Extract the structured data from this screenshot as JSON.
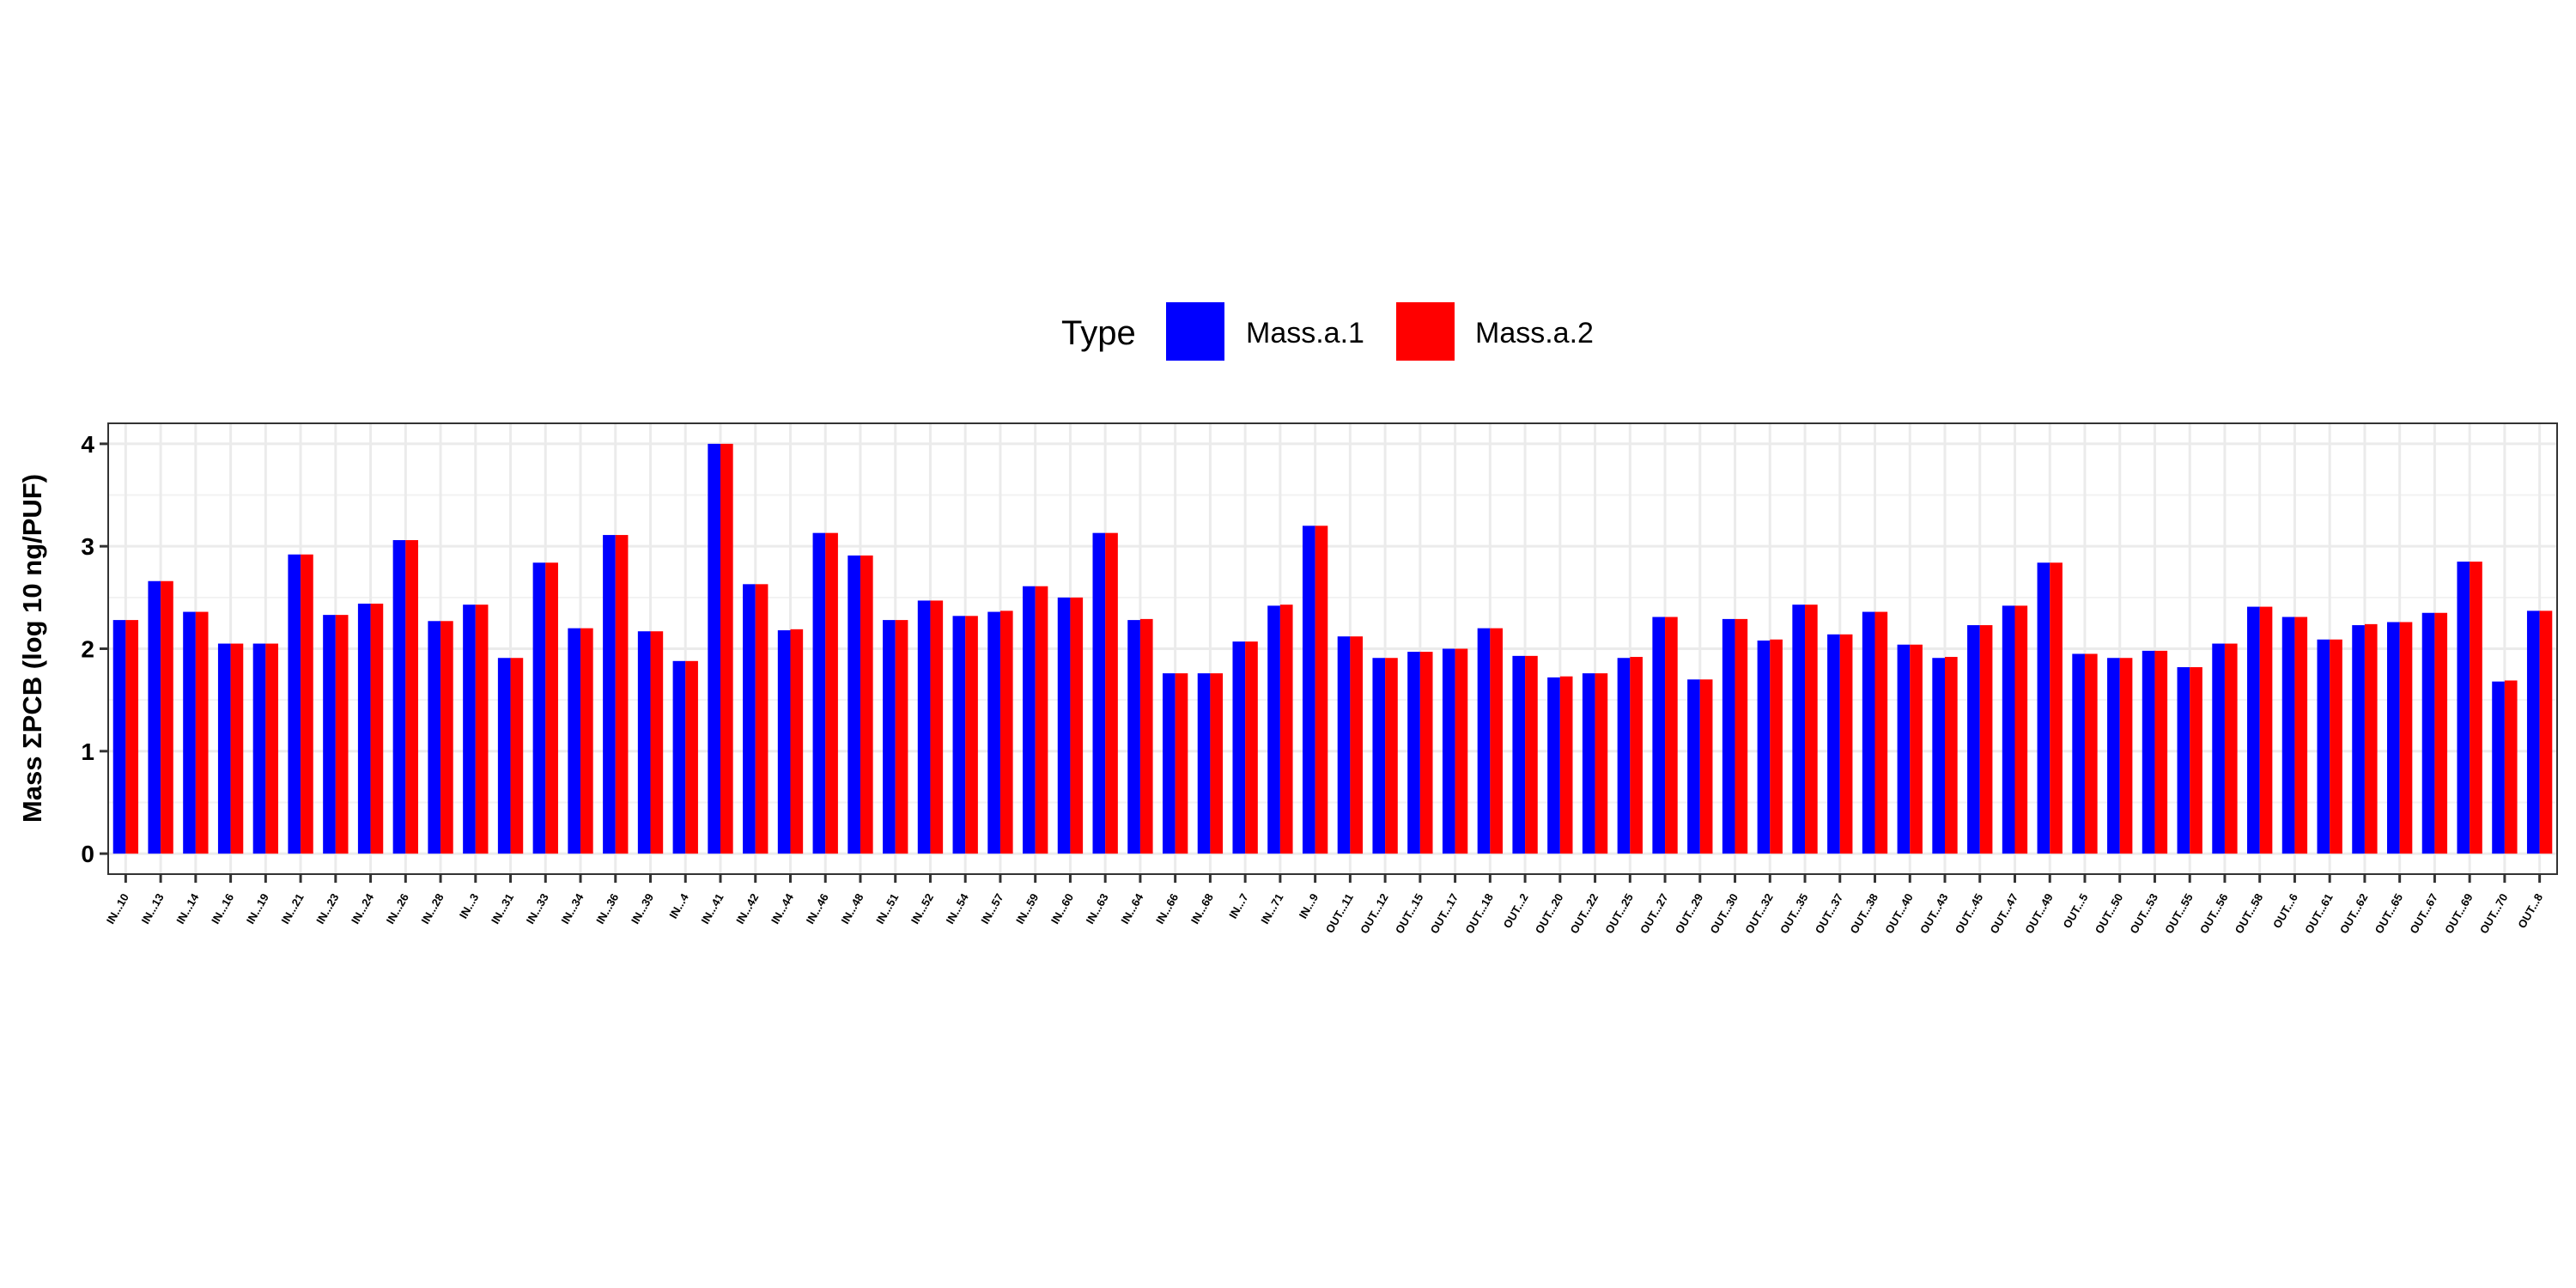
{
  "chart_data": {
    "type": "bar",
    "title": "",
    "xlabel": "",
    "ylabel": "Mass ΣPCB (log 10 ng/PUF)",
    "ylim": [
      -0.2,
      4.2
    ],
    "yticks": [
      0,
      1,
      2,
      3,
      4
    ],
    "grid": true,
    "legend": {
      "title": "Type",
      "placement": "top"
    },
    "categories": [
      "IN...10",
      "IN...13",
      "IN...14",
      "IN...16",
      "IN...19",
      "IN...21",
      "IN...23",
      "IN...24",
      "IN...26",
      "IN...28",
      "IN...3",
      "IN...31",
      "IN...33",
      "IN...34",
      "IN...36",
      "IN...39",
      "IN...4",
      "IN...41",
      "IN...42",
      "IN...44",
      "IN...46",
      "IN...48",
      "IN...51",
      "IN...52",
      "IN...54",
      "IN...57",
      "IN...59",
      "IN...60",
      "IN...63",
      "IN...64",
      "IN...66",
      "IN...68",
      "IN...7",
      "IN...71",
      "IN...9",
      "OUT...11",
      "OUT...12",
      "OUT...15",
      "OUT...17",
      "OUT...18",
      "OUT...2",
      "OUT...20",
      "OUT...22",
      "OUT...25",
      "OUT...27",
      "OUT...29",
      "OUT...30",
      "OUT...32",
      "OUT...35",
      "OUT...37",
      "OUT...38",
      "OUT...40",
      "OUT...43",
      "OUT...45",
      "OUT...47",
      "OUT...49",
      "OUT...5",
      "OUT...50",
      "OUT...53",
      "OUT...55",
      "OUT...56",
      "OUT...58",
      "OUT...6",
      "OUT...61",
      "OUT...62",
      "OUT...65",
      "OUT...67",
      "OUT...69",
      "OUT...70",
      "OUT...8"
    ],
    "series": [
      {
        "name": "Mass.a.1",
        "color": "#0000ff",
        "values": [
          2.28,
          2.66,
          2.36,
          2.05,
          2.05,
          2.92,
          2.33,
          2.44,
          3.06,
          2.27,
          2.43,
          1.91,
          2.84,
          2.2,
          3.11,
          2.17,
          1.88,
          4.0,
          2.63,
          2.18,
          3.13,
          2.91,
          2.28,
          2.47,
          2.32,
          2.36,
          2.61,
          2.5,
          3.13,
          2.28,
          1.76,
          1.76,
          2.07,
          2.42,
          3.2,
          2.12,
          1.91,
          1.97,
          2.0,
          2.2,
          1.93,
          1.72,
          1.76,
          1.91,
          2.31,
          1.7,
          2.29,
          2.08,
          2.43,
          2.14,
          2.36,
          2.04,
          1.91,
          2.23,
          2.42,
          2.84,
          1.95,
          1.91,
          1.98,
          1.82,
          2.05,
          2.41,
          2.31,
          2.09,
          2.23,
          2.26,
          2.35,
          2.85,
          1.68,
          2.37
        ]
      },
      {
        "name": "Mass.a.2",
        "color": "#ff0000",
        "values": [
          2.28,
          2.66,
          2.36,
          2.05,
          2.05,
          2.92,
          2.33,
          2.44,
          3.06,
          2.27,
          2.43,
          1.91,
          2.84,
          2.2,
          3.11,
          2.17,
          1.88,
          4.0,
          2.63,
          2.19,
          3.13,
          2.91,
          2.28,
          2.47,
          2.32,
          2.37,
          2.61,
          2.5,
          3.13,
          2.29,
          1.76,
          1.76,
          2.07,
          2.43,
          3.2,
          2.12,
          1.91,
          1.97,
          2.0,
          2.2,
          1.93,
          1.73,
          1.76,
          1.92,
          2.31,
          1.7,
          2.29,
          2.09,
          2.43,
          2.14,
          2.36,
          2.04,
          1.92,
          2.23,
          2.42,
          2.84,
          1.95,
          1.91,
          1.98,
          1.82,
          2.05,
          2.41,
          2.31,
          2.09,
          2.24,
          2.26,
          2.35,
          2.85,
          1.69,
          2.37
        ]
      }
    ]
  }
}
